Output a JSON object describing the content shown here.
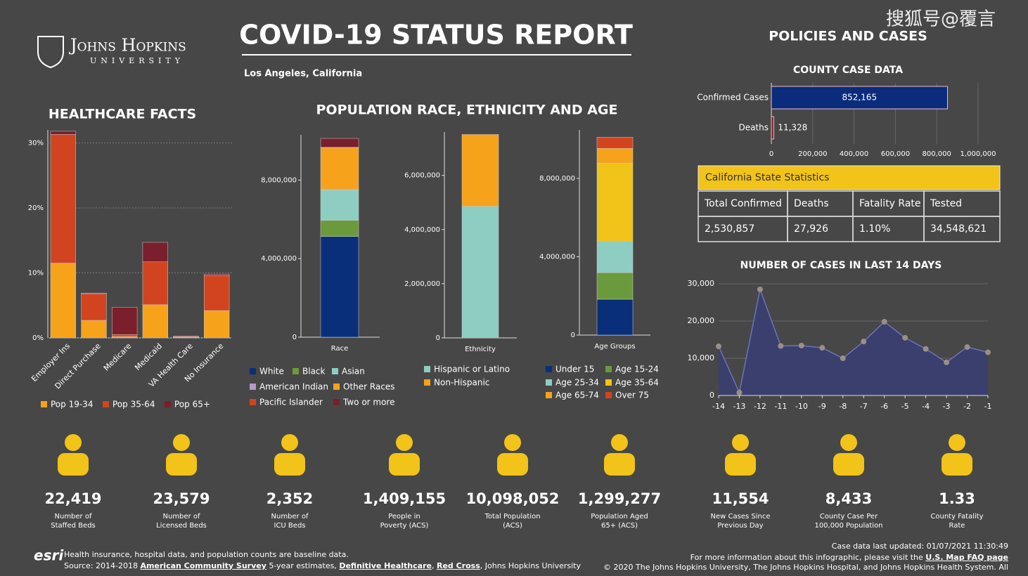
{
  "header": {
    "logo_name": "Johns Hopkins",
    "logo_sub": "UNIVERSITY",
    "title": "COVID-19 STATUS REPORT",
    "location": "Los Angeles, California",
    "policies": "POLICIES AND CASES",
    "population_heading": "POPULATION RACE, ETHNICITY AND AGE",
    "watermark": "搜狐号@覆言"
  },
  "chart_data": [
    {
      "type": "bar",
      "stacked": true,
      "title": "HEALTHCARE FACTS",
      "categories": [
        "Employer Ins",
        "Direct Purchase",
        "Medicare",
        "Medicaid",
        "VA Health Care",
        "No Insurance"
      ],
      "series": [
        {
          "name": "Pop 19-34",
          "color": "#f7a21b",
          "values": [
            11.5,
            2.7,
            0.2,
            5.1,
            0.1,
            4.2
          ]
        },
        {
          "name": "Pop 35-64",
          "color": "#d2441f",
          "values": [
            19.8,
            4.1,
            0.3,
            6.6,
            0.1,
            5.4
          ]
        },
        {
          "name": "Pop 65+",
          "color": "#7a1f2b",
          "values": [
            0.5,
            0.1,
            4.2,
            3.0,
            0.1,
            0.2
          ]
        }
      ],
      "ylim": [
        0,
        32
      ],
      "yticks": [
        {
          "value": 0,
          "label": "0%"
        },
        {
          "value": 10,
          "label": "10%"
        },
        {
          "value": 20,
          "label": "20%"
        },
        {
          "value": 30,
          "label": "30%"
        }
      ],
      "grid": true
    },
    {
      "type": "bar",
      "stacked": true,
      "categories": [
        "Race"
      ],
      "series": [
        {
          "name": "White",
          "color": "#0a2f7a",
          "values": [
            5130000
          ]
        },
        {
          "name": "Black",
          "color": "#6b9a3c",
          "values": [
            820000
          ]
        },
        {
          "name": "Asian",
          "color": "#8ecdc1",
          "values": [
            1540000
          ]
        },
        {
          "name": "American Indian",
          "color": "#b39ac6",
          "values": [
            50000
          ]
        },
        {
          "name": "Other Races",
          "color": "#f7a21b",
          "values": [
            2100000
          ]
        },
        {
          "name": "Pacific Islander",
          "color": "#d2441f",
          "values": [
            30000
          ]
        },
        {
          "name": "Two or more",
          "color": "#7a1f2b",
          "values": [
            450000
          ]
        }
      ],
      "ylim": [
        0,
        10300000
      ],
      "yticks": [
        0,
        {
          "value": 4000000,
          "label": "4,000,000"
        },
        {
          "value": 8000000,
          "label": "8,000,000"
        }
      ],
      "grid": false
    },
    {
      "type": "bar",
      "stacked": true,
      "categories": [
        "Ethnicity"
      ],
      "series": [
        {
          "name": "Hispanic or Latino",
          "color": "#8ecdc1",
          "values": [
            4860000
          ]
        },
        {
          "name": "Non-Hispanic",
          "color": "#f7a21b",
          "values": [
            2650000
          ]
        }
      ],
      "ylim": [
        0,
        7600000
      ],
      "yticks": [
        0,
        {
          "value": 2000000,
          "label": "2,000,000"
        },
        {
          "value": 4000000,
          "label": "4,000,000"
        },
        {
          "value": 6000000,
          "label": "6,000,000"
        }
      ],
      "grid": false
    },
    {
      "type": "bar",
      "stacked": true,
      "categories": [
        "Age Groups"
      ],
      "series": [
        {
          "name": "Under 15",
          "color": "#0a2f7a",
          "values": [
            1830000
          ]
        },
        {
          "name": "Age 15-24",
          "color": "#6b9a3c",
          "values": [
            1360000
          ]
        },
        {
          "name": "Age 25-34",
          "color": "#8ecdc1",
          "values": [
            1610000
          ]
        },
        {
          "name": "Age 35-64",
          "color": "#f2c318",
          "values": [
            3980000
          ]
        },
        {
          "name": "Age 65-74",
          "color": "#f7a21b",
          "values": [
            750000
          ]
        },
        {
          "name": "Over 75",
          "color": "#d2441f",
          "values": [
            570000
          ]
        }
      ],
      "ylim": [
        0,
        10470000
      ],
      "yticks": [
        0,
        {
          "value": 4000000,
          "label": "4,000,000"
        },
        {
          "value": 8000000,
          "label": "8,000,000"
        }
      ],
      "grid": false
    },
    {
      "type": "hbar",
      "title": "COUNTY CASE DATA",
      "categories": [
        "Confirmed Cases",
        "Deaths"
      ],
      "values": [
        852165,
        11328
      ],
      "value_labels": [
        "852,165",
        "11,328"
      ],
      "colors": [
        "#0b2b7c",
        "#7a1f2b"
      ],
      "xlim": [
        0,
        1000000
      ],
      "xticks": [
        0,
        {
          "value": 200000,
          "label": "200,000"
        },
        {
          "value": 400000,
          "label": "400,000"
        },
        {
          "value": 600000,
          "label": "600,000"
        },
        {
          "value": 800000,
          "label": "800,000"
        },
        {
          "value": 1000000,
          "label": "1,000,000"
        }
      ],
      "grid": true
    },
    {
      "type": "line",
      "title": "NUMBER OF CASES IN LAST 14 DAYS",
      "x": [
        -14,
        -13,
        -12,
        -11,
        -10,
        -9,
        -8,
        -7,
        -6,
        -5,
        -4,
        -3,
        -2,
        -1
      ],
      "values": [
        13200,
        800,
        28500,
        13300,
        13400,
        12800,
        10000,
        14500,
        19800,
        15500,
        12500,
        8900,
        13000,
        11600
      ],
      "color": "#6c74b8",
      "fill": "#3b3f6e",
      "xlim": [
        -14,
        -1
      ],
      "xticks": [
        -14,
        -13,
        -12,
        -11,
        -10,
        -9,
        -8,
        -7,
        -6,
        -5,
        -4,
        -3,
        -2,
        -1
      ],
      "ylim": [
        0,
        30000
      ],
      "yticks": [
        0,
        {
          "value": 10000,
          "label": "10,000"
        },
        {
          "value": 20000,
          "label": "20,000"
        },
        {
          "value": 30000,
          "label": "30,000"
        }
      ],
      "grid": true
    }
  ],
  "table": {
    "title": "California State Statistics",
    "columns": [
      "Total Confirmed",
      "Deaths",
      "Fatality Rate",
      "Tested"
    ],
    "rows": [
      [
        "2,530,857",
        "27,926",
        "1.10%",
        "34,548,621"
      ]
    ]
  },
  "stats": [
    {
      "value": "22,419",
      "label": [
        "Number of",
        "Staffed Beds"
      ]
    },
    {
      "value": "23,579",
      "label": [
        "Number of",
        "Licensed Beds"
      ]
    },
    {
      "value": "2,352",
      "label": [
        "Number of",
        "ICU Beds"
      ]
    },
    {
      "value": "1,409,155",
      "label": [
        "People in",
        "Poverty (ACS)"
      ]
    },
    {
      "value": "10,098,052",
      "label": [
        "Total Population",
        "(ACS)"
      ]
    },
    {
      "value": "1,299,277",
      "label": [
        "Population Aged",
        "65+ (ACS)"
      ]
    },
    {
      "value": "11,554",
      "label": [
        "New Cases Since",
        "Previous Day"
      ]
    },
    {
      "value": "8,433",
      "label": [
        "County Case Per",
        "100,000 Population"
      ]
    },
    {
      "value": "1.33",
      "label": [
        "County Fatality",
        "Rate"
      ]
    }
  ],
  "footer": {
    "esri": "esri",
    "note": "Health insurance, hospital data, and population counts are baseline data.",
    "source": [
      "Source: 2014-2018 ",
      "American Community Survey",
      " 5-year estimates, ",
      "Definitive Healthcare",
      ", ",
      "Red Cross",
      ", Johns Hopkins University"
    ],
    "updated": "Case data last updated: 01/07/2021 11:30:49",
    "info": "For more information about this infographic, please visit the ",
    "faq": "U.S. Map FAQ page",
    "copyright": "© 2020 The Johns Hopkins University, The Johns Hopkins Hospital, and Johns Hopkins Health System. All"
  }
}
